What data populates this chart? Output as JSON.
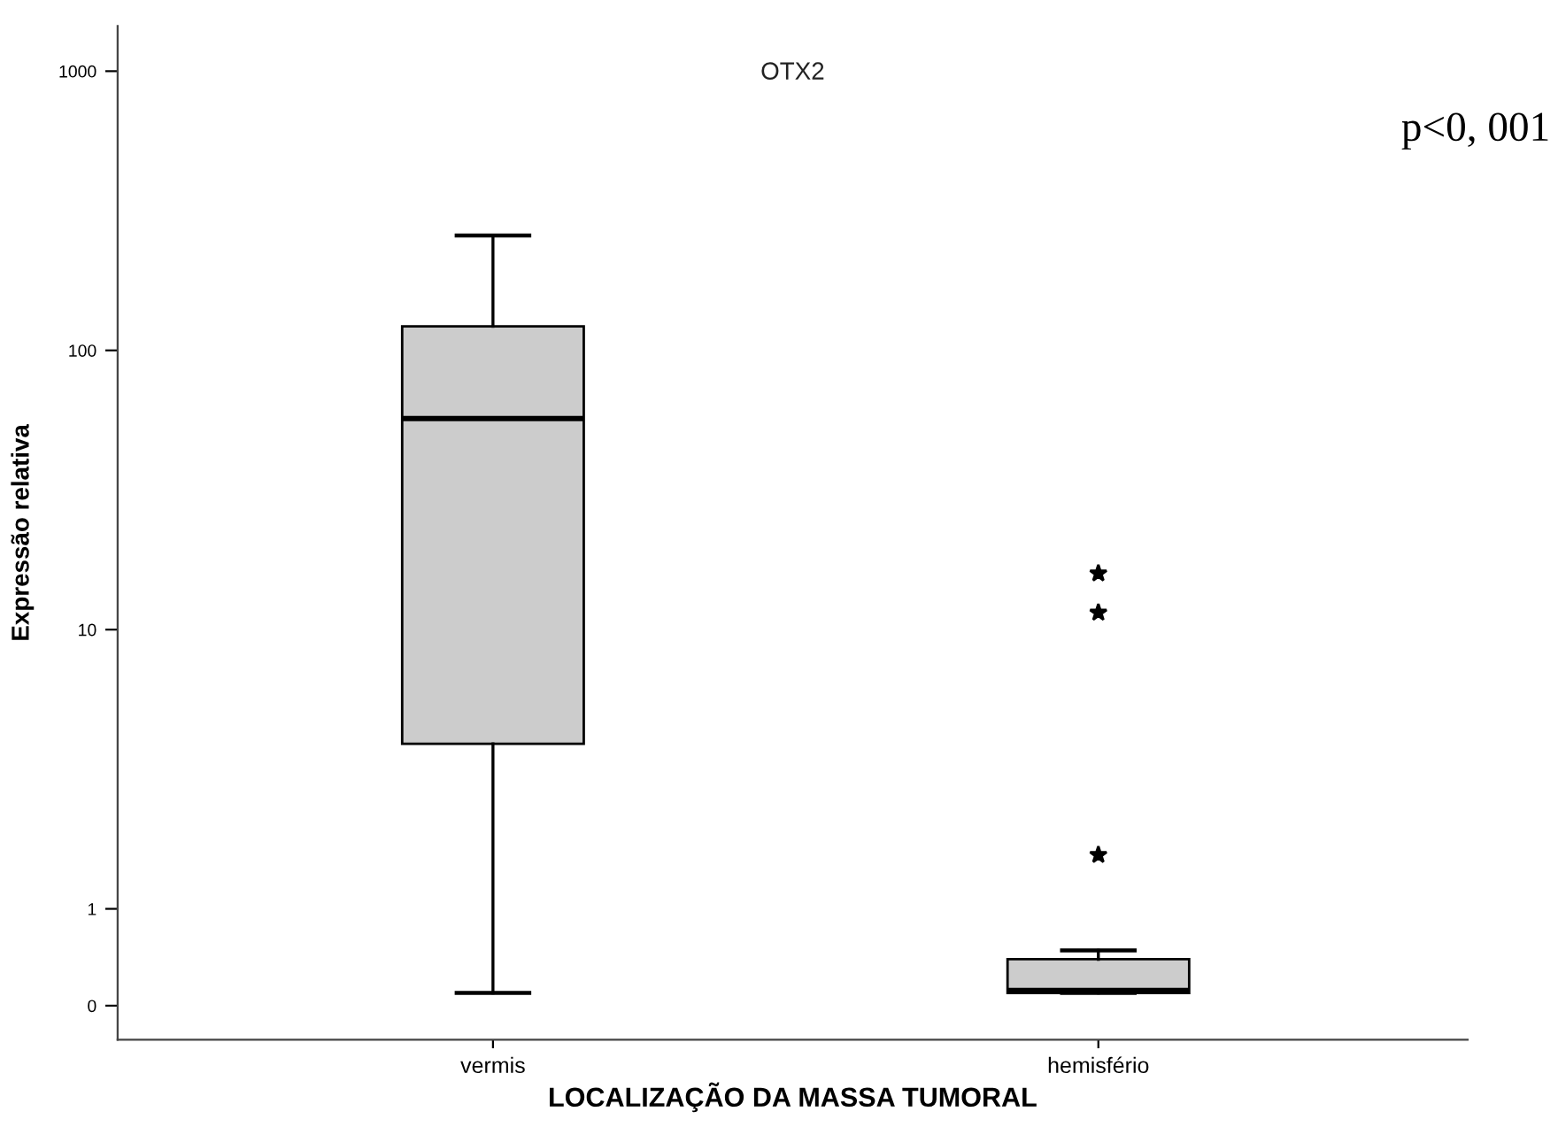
{
  "chart_data": {
    "type": "box",
    "title": "OTX2",
    "xlabel": "LOCALIZAÇÃO DA MASSA TUMORAL",
    "ylabel": "Expressão relativa",
    "categories": [
      "vermis",
      "hemisfério"
    ],
    "boxes": [
      {
        "low": 0.5,
        "q1": 3.9,
        "median": 57,
        "q3": 122,
        "high": 258
      },
      {
        "low": 0.5,
        "q1": 0.5,
        "median": 0.51,
        "q3": 0.66,
        "high": 0.71,
        "outliers": [
          15.9,
          11.5,
          1.56
        ]
      }
    ],
    "color": "#cccccc",
    "marker": "star",
    "log": true,
    "ylim": [
      0.34,
      1450
    ],
    "yticks": [
      {
        "value": 0.45,
        "label": "0"
      },
      1,
      10,
      100,
      1000
    ],
    "annotations": [
      "p<0, 001"
    ],
    "grid": false
  }
}
